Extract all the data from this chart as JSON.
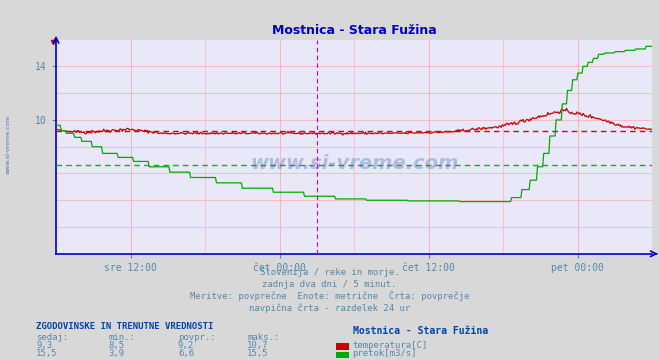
{
  "title": "Mostnica - Stara Fužina",
  "title_color": "#0000cc",
  "bg_color": "#d8d8d8",
  "plot_bg_color": "#e8e8f8",
  "grid_color": "#ffaaaa",
  "x_min": 0,
  "x_max": 576,
  "y_min": 0,
  "y_max": 16,
  "y_ticks": [
    10,
    14
  ],
  "x_tick_labels": [
    "sre 12:00",
    "čet 00:00",
    "čet 12:00",
    "pet 00:00"
  ],
  "x_tick_positions": [
    72,
    216,
    360,
    504
  ],
  "avg_temp": 9.2,
  "avg_flow": 6.6,
  "avg_temp_color": "#dd0000",
  "avg_flow_color": "#00bb00",
  "temp_line_color": "#cc0000",
  "flow_line_color": "#00aa00",
  "axis_color": "#0000cc",
  "tick_color": "#5588aa",
  "text_color": "#5588aa",
  "bold_text_color": "#0044aa",
  "watermark_color": "#3355aa",
  "info_text1": "Slovenija / reke in morje.",
  "info_text2": "zadnja dva dni / 5 minut.",
  "info_text3": "Meritve: povprečne  Enote: metrične  Črta: povprečje",
  "info_text4": "navpična črta - razdelek 24 ur",
  "legend_title": "ZGODOVINSKE IN TRENUTNE VREDNOSTI",
  "col_headers": [
    "sedaj:",
    "min.:",
    "povpr.:",
    "maks.:"
  ],
  "temp_values": [
    "9,3",
    "8,5",
    "9,2",
    "10,7"
  ],
  "flow_values": [
    "15,5",
    "3,9",
    "6,6",
    "15,5"
  ],
  "station_name": "Mostnica - Stara Fužina",
  "label_temp": "temperatura[C]",
  "label_flow": "pretok[m3/s]",
  "vline_color": "#cc00cc",
  "vline_pos": 252
}
